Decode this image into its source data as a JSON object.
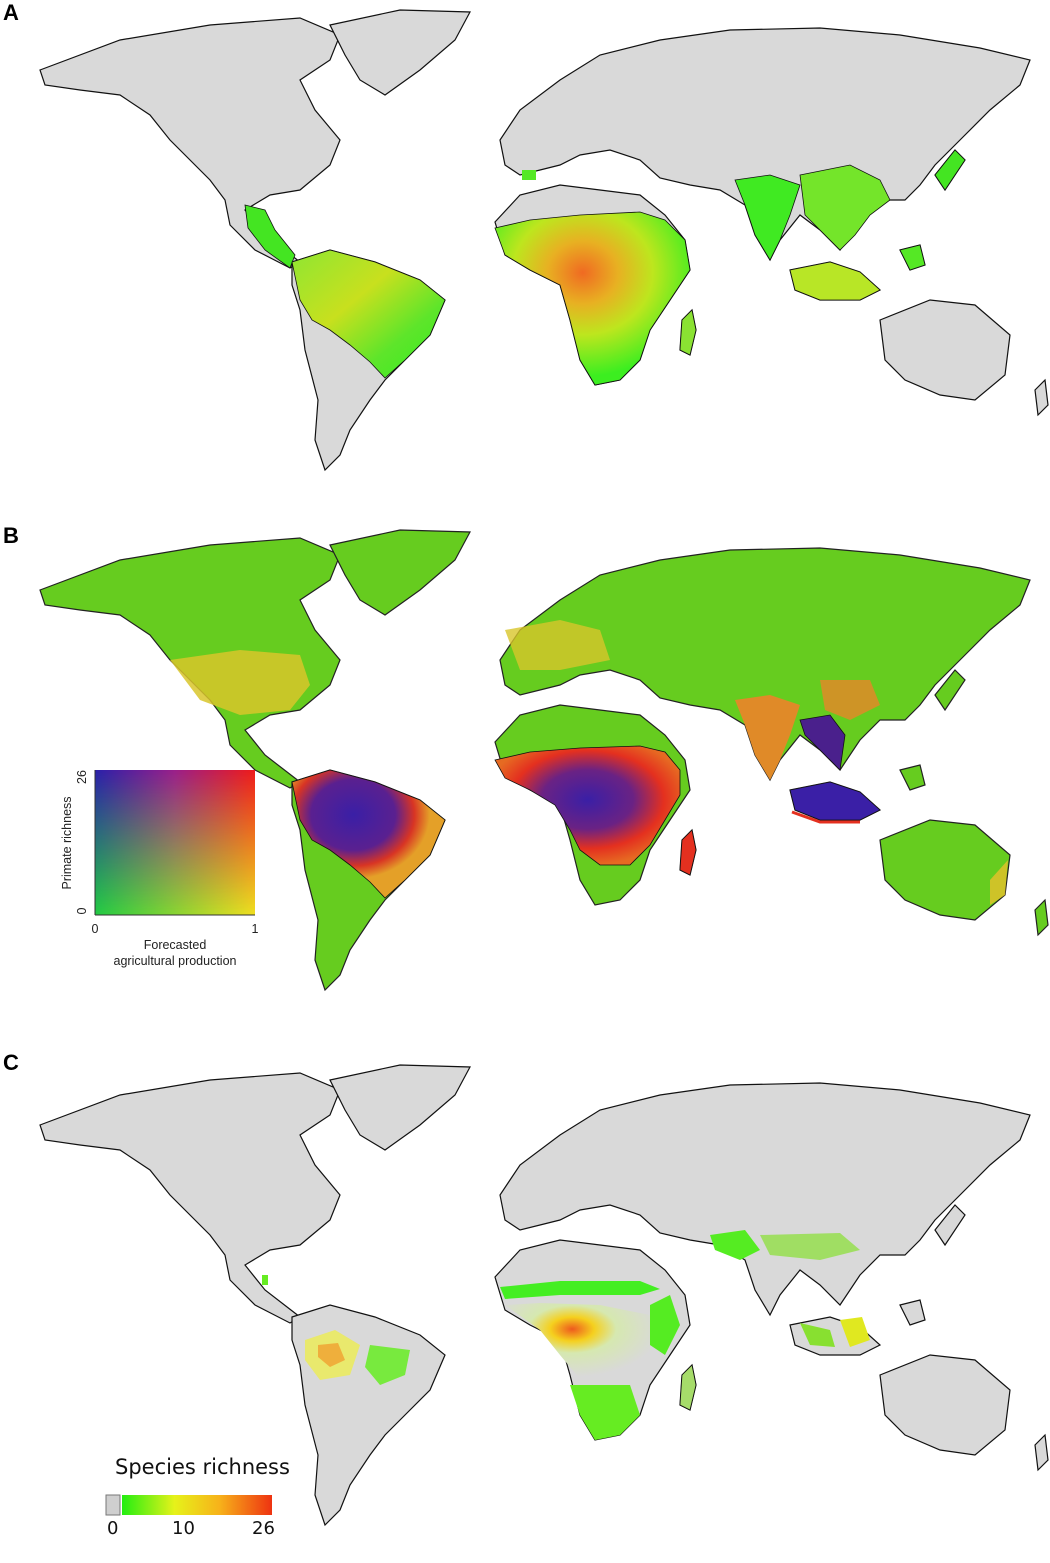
{
  "panels": {
    "a": {
      "letter": "A"
    },
    "b": {
      "letter": "B",
      "legend": {
        "y_label": "Primate richness",
        "y_min": "0",
        "y_max": "26",
        "x_min": "0",
        "x_max": "1",
        "x_label_line1": "Forecasted",
        "x_label_line2": "agricultural production"
      }
    },
    "c": {
      "letter": "C",
      "legend": {
        "title": "Species richness",
        "tick_0": "0",
        "tick_10": "10",
        "tick_26": "26",
        "colors": [
          "#cfcfcf",
          "#22ee11",
          "#e6f21a",
          "#f7b21a",
          "#ee3311"
        ]
      }
    }
  },
  "colors": {
    "land_gray": "#d9d9d9",
    "coast": "#111111",
    "richness_low": "#55ee22",
    "richness_mid": "#d8ee22",
    "richness_high": "#f07020",
    "richness_max": "#e02a1a",
    "bivariate_green": "#66cc1f",
    "bivariate_yellow": "#e8c02a",
    "bivariate_red": "#e4301f",
    "bivariate_blue": "#3a1fa6"
  }
}
